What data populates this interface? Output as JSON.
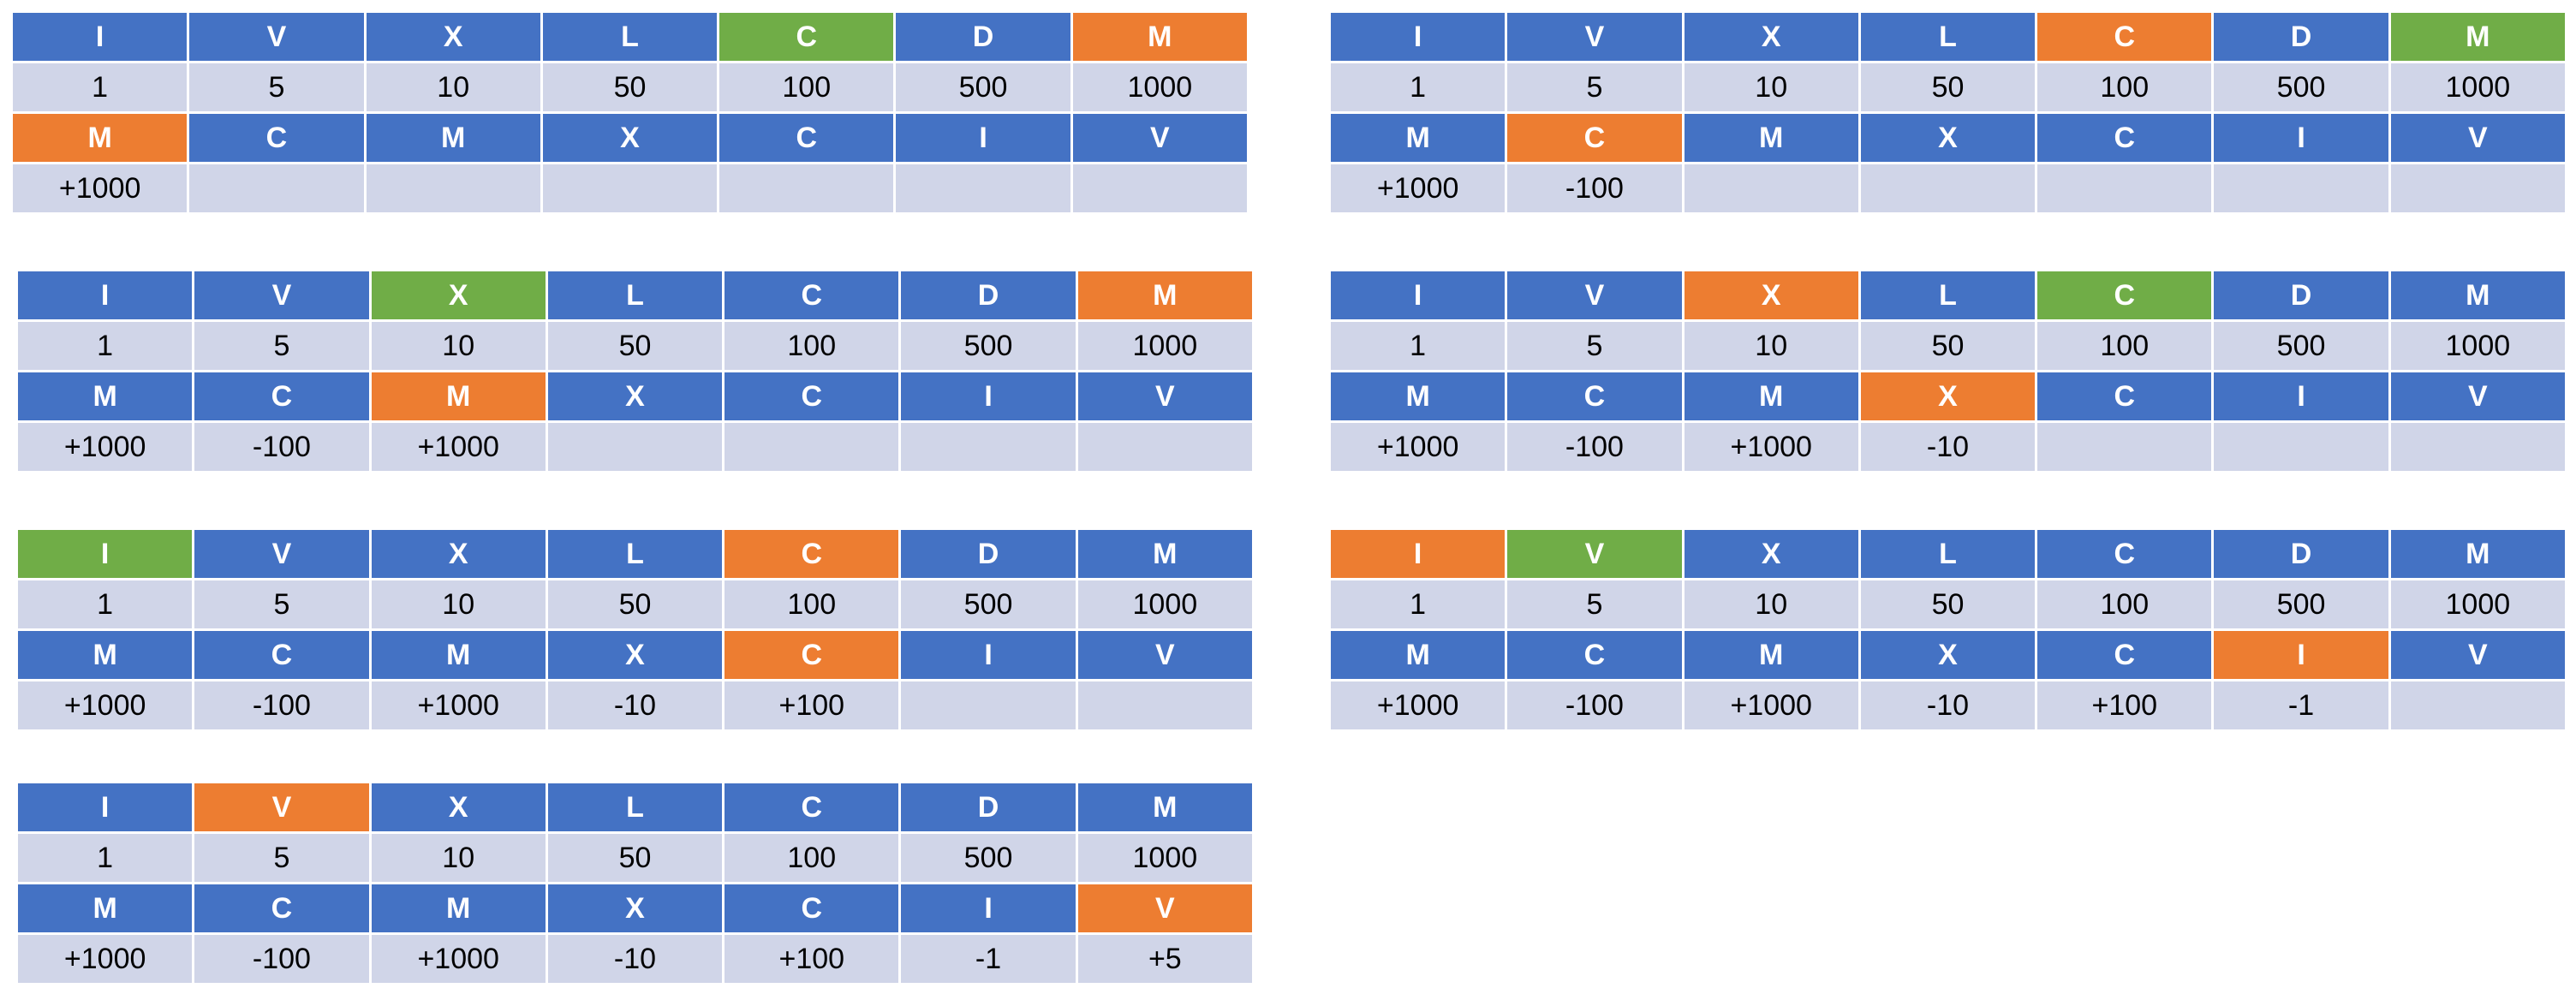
{
  "colors": {
    "blue": "#4472C4",
    "light": "#D0D5E8",
    "green": "#70AD47",
    "orange": "#ED7D31"
  },
  "symbols": [
    "I",
    "V",
    "X",
    "L",
    "C",
    "D",
    "M"
  ],
  "values": [
    "1",
    "5",
    "10",
    "50",
    "100",
    "500",
    "1000"
  ],
  "input": [
    "M",
    "C",
    "M",
    "X",
    "C",
    "I",
    "V"
  ],
  "steps": [
    {
      "results": [
        "+1000",
        "",
        "",
        "",
        "",
        "",
        ""
      ],
      "lookup_orange": 6,
      "lookup_green": 4,
      "input_orange": 0
    },
    {
      "results": [
        "+1000",
        "-100",
        "",
        "",
        "",
        "",
        ""
      ],
      "lookup_orange": 4,
      "lookup_green": 6,
      "input_orange": 1
    },
    {
      "results": [
        "+1000",
        "-100",
        "+1000",
        "",
        "",
        "",
        ""
      ],
      "lookup_orange": 6,
      "lookup_green": 2,
      "input_orange": 2
    },
    {
      "results": [
        "+1000",
        "-100",
        "+1000",
        "-10",
        "",
        "",
        ""
      ],
      "lookup_orange": 2,
      "lookup_green": 4,
      "input_orange": 3
    },
    {
      "results": [
        "+1000",
        "-100",
        "+1000",
        "-10",
        "+100",
        "",
        ""
      ],
      "lookup_orange": 4,
      "lookup_green": 0,
      "input_orange": 4
    },
    {
      "results": [
        "+1000",
        "-100",
        "+1000",
        "-10",
        "+100",
        "-1",
        ""
      ],
      "lookup_orange": 0,
      "lookup_green": 1,
      "input_orange": 5
    },
    {
      "results": [
        "+1000",
        "-100",
        "+1000",
        "-10",
        "+100",
        "-1",
        "+5"
      ],
      "lookup_orange": 1,
      "lookup_green": -1,
      "input_orange": 6
    }
  ]
}
